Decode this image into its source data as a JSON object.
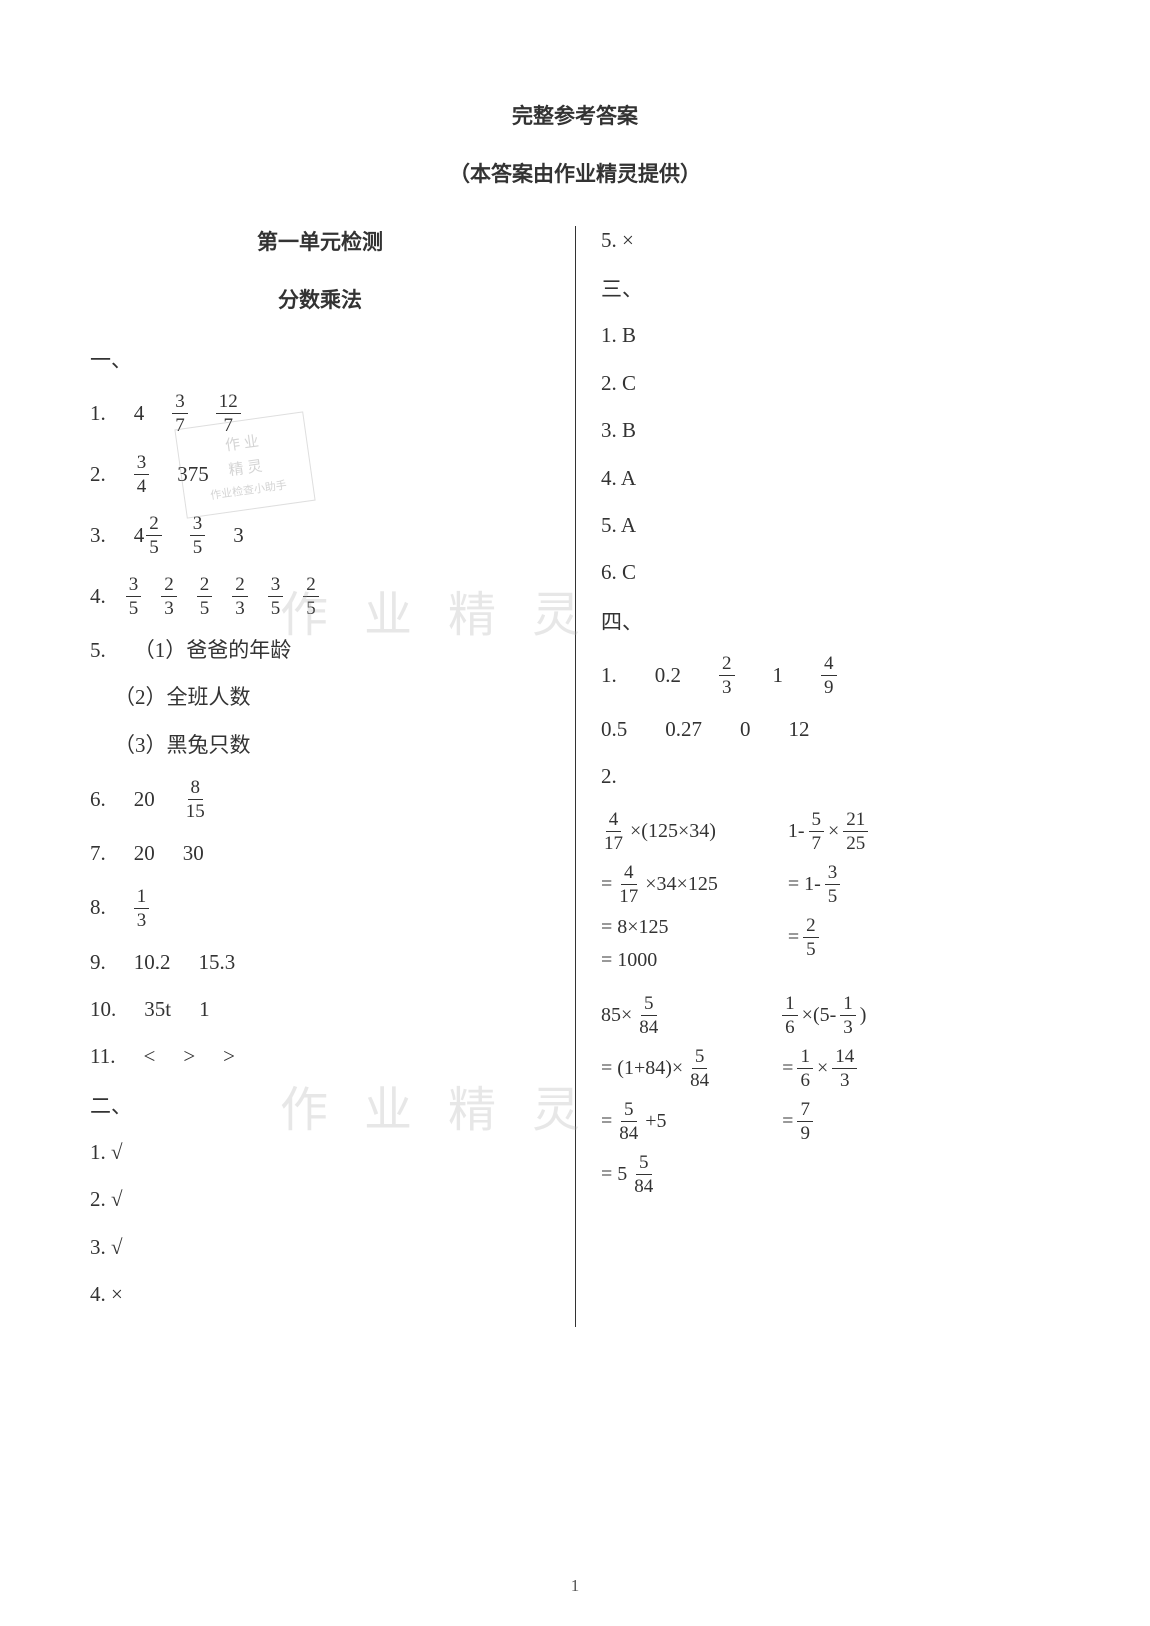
{
  "header": {
    "title": "完整参考答案",
    "subtitle": "（本答案由作业精灵提供）"
  },
  "unit": {
    "title": "第一单元检测",
    "subtitle": "分数乘法"
  },
  "sections": {
    "one": "一、",
    "two": "二、",
    "three": "三、",
    "four": "四、"
  },
  "left": {
    "q1": {
      "label": "1.",
      "a": "4",
      "b_num": "3",
      "b_den": "7",
      "c_num": "12",
      "c_den": "7"
    },
    "q2": {
      "label": "2.",
      "a_num": "3",
      "a_den": "4",
      "b": "375"
    },
    "q3": {
      "label": "3.",
      "a_whole": "4",
      "a_num": "2",
      "a_den": "5",
      "b_num": "3",
      "b_den": "5",
      "c": "3"
    },
    "q4": {
      "label": "4.",
      "a_num": "3",
      "a_den": "5",
      "b_num": "2",
      "b_den": "3",
      "c_num": "2",
      "c_den": "5",
      "d_num": "2",
      "d_den": "3",
      "e_num": "3",
      "e_den": "5",
      "f_num": "2",
      "f_den": "5"
    },
    "q5": {
      "label": "5.",
      "p1": "（1）爸爸的年龄",
      "p2": "（2）全班人数",
      "p3": "（3）黑兔只数"
    },
    "q6": {
      "label": "6.",
      "a": "20",
      "b_num": "8",
      "b_den": "15"
    },
    "q7": {
      "label": "7.",
      "a": "20",
      "b": "30"
    },
    "q8": {
      "label": "8.",
      "a_num": "1",
      "a_den": "3"
    },
    "q9": {
      "label": "9.",
      "a": "10.2",
      "b": "15.3"
    },
    "q10": {
      "label": "10.",
      "a": "35t",
      "b": "1"
    },
    "q11": {
      "label": "11.",
      "a": "<",
      "b": ">",
      "c": ">"
    },
    "tf": {
      "t1": "1. √",
      "t2": "2. √",
      "t3": "3. √",
      "t4": "4. ×"
    }
  },
  "right_top": {
    "t5": "5. ×",
    "mc": {
      "m1": "1. B",
      "m2": "2. C",
      "m3": "3. B",
      "m4": "4. A",
      "m5": "5. A",
      "m6": "6. C"
    }
  },
  "four_section": {
    "q1": {
      "label": "1.",
      "row1": {
        "a": "0.2",
        "b_num": "2",
        "b_den": "3",
        "c": "1",
        "d_num": "4",
        "d_den": "9"
      },
      "row2": {
        "a": "0.5",
        "b": "0.27",
        "c": "0",
        "d": "12"
      }
    },
    "q2": {
      "label": "2."
    },
    "calc1": {
      "left": {
        "l1a_num": "4",
        "l1a_den": "17",
        "l1b": "×(125×34)",
        "l2a": "=",
        "l2b_num": "4",
        "l2b_den": "17",
        "l2c": "×34×125",
        "l3": "= 8×125",
        "l4": "= 1000"
      },
      "right": {
        "l1a": "1-",
        "l1b_num": "5",
        "l1b_den": "7",
        "l1c": "×",
        "l1d_num": "21",
        "l1d_den": "25",
        "l2a": "= 1-",
        "l2b_num": "3",
        "l2b_den": "5",
        "l3a": "=",
        "l3b_num": "2",
        "l3b_den": "5"
      }
    },
    "calc2": {
      "left": {
        "l1a": "85×",
        "l1b_num": "5",
        "l1b_den": "84",
        "l2a": "= (1+84)×",
        "l2b_num": "5",
        "l2b_den": "84",
        "l3a": "=",
        "l3b_num": "5",
        "l3b_den": "84",
        "l3c": "+5",
        "l4a": "= 5",
        "l4b_num": "5",
        "l4b_den": "84"
      },
      "right": {
        "l1a_num": "1",
        "l1a_den": "6",
        "l1b": "×(5-",
        "l1c_num": "1",
        "l1c_den": "3",
        "l1d": ")",
        "l2a": "=",
        "l2b_num": "1",
        "l2b_den": "6",
        "l2c": "×",
        "l2d_num": "14",
        "l2d_den": "3",
        "l3a": "=",
        "l3b_num": "7",
        "l3b_den": "9"
      }
    }
  },
  "watermark": "作 业 精 灵",
  "stamp": {
    "l1": "作 业",
    "l2": "精 灵",
    "l3": "作业检查小助手"
  },
  "pagenum": "1",
  "style": {
    "bg": "#ffffff",
    "text": "#333333",
    "title_fontsize": 21,
    "body_fontsize": 21,
    "frac_fontsize": 19,
    "watermark_color": "rgba(170,170,170,0.28)"
  }
}
